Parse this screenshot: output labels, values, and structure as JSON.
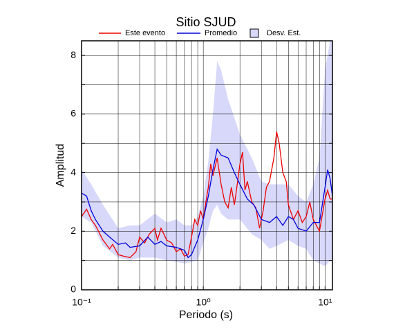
{
  "chart_data": {
    "type": "line",
    "title": "Sitio SJUD",
    "xlabel": "Periodo (s)",
    "ylabel": "Amplitud",
    "xscale": "log",
    "xlim": [
      0.1,
      11.5
    ],
    "ylim": [
      0,
      8.5
    ],
    "xticks": [
      {
        "value": 0.1,
        "label": "10⁻¹"
      },
      {
        "value": 1,
        "label": "10⁰"
      },
      {
        "value": 10,
        "label": "10¹"
      }
    ],
    "xminor_ticks": [
      0.2,
      0.3,
      0.4,
      0.5,
      0.6,
      0.7,
      0.8,
      0.9,
      2,
      3,
      4,
      5,
      6,
      7,
      8,
      9
    ],
    "yticks": [
      0,
      2,
      4,
      6,
      8
    ],
    "yminor_ticks": [
      1,
      3,
      5,
      7
    ],
    "grid": true,
    "legend": "top",
    "band": {
      "name": "Desv. Est.",
      "color": "#d8d8fa",
      "x": [
        0.1,
        0.12,
        0.15,
        0.2,
        0.25,
        0.3,
        0.4,
        0.5,
        0.6,
        0.7,
        0.8,
        0.9,
        1.0,
        1.1,
        1.2,
        1.3,
        1.4,
        1.6,
        2.0,
        2.5,
        3.0,
        3.5,
        4.0,
        5.0,
        6.0,
        7.0,
        8.0,
        9.0,
        10.0,
        11.0,
        11.5
      ],
      "upper": [
        4.1,
        3.6,
        2.9,
        2.1,
        2.2,
        2.2,
        2.6,
        2.3,
        2.4,
        2.2,
        2.2,
        2.5,
        3.2,
        4.4,
        6.0,
        7.8,
        7.5,
        6.5,
        5.3,
        4.5,
        3.7,
        3.6,
        3.6,
        3.6,
        3.2,
        3.0,
        3.6,
        4.5,
        7.5,
        8.5,
        8.5
      ],
      "lower": [
        2.5,
        2.3,
        1.5,
        1.1,
        1.0,
        1.1,
        1.1,
        1.0,
        0.95,
        0.9,
        0.95,
        1.0,
        1.6,
        2.1,
        2.7,
        2.9,
        2.6,
        2.4,
        2.4,
        1.9,
        1.7,
        1.4,
        1.5,
        1.7,
        1.5,
        1.4,
        1.0,
        0.9,
        0.8,
        1.0,
        1.0
      ]
    },
    "series": [
      {
        "name": "Este evento",
        "color": "#ee0000",
        "x": [
          0.1,
          0.11,
          0.12,
          0.13,
          0.15,
          0.17,
          0.18,
          0.2,
          0.22,
          0.25,
          0.28,
          0.3,
          0.33,
          0.36,
          0.4,
          0.42,
          0.45,
          0.5,
          0.55,
          0.6,
          0.65,
          0.7,
          0.75,
          0.8,
          0.85,
          0.9,
          0.95,
          1.0,
          1.05,
          1.1,
          1.15,
          1.2,
          1.3,
          1.4,
          1.5,
          1.6,
          1.7,
          1.8,
          1.9,
          2.0,
          2.1,
          2.2,
          2.3,
          2.5,
          2.7,
          2.9,
          3.1,
          3.3,
          3.5,
          3.8,
          4.0,
          4.2,
          4.5,
          4.8,
          5.0,
          5.5,
          6.0,
          6.5,
          7.0,
          7.5,
          8.0,
          9.0,
          10.0,
          10.5,
          11.0,
          11.5
        ],
        "values": [
          2.5,
          2.75,
          2.4,
          2.2,
          1.7,
          1.4,
          1.55,
          1.2,
          1.15,
          1.1,
          1.3,
          1.8,
          1.6,
          1.9,
          2.1,
          1.7,
          2.1,
          1.7,
          1.6,
          1.3,
          1.4,
          1.15,
          1.2,
          1.8,
          2.4,
          2.2,
          2.7,
          2.4,
          3.0,
          3.5,
          4.3,
          3.9,
          4.5,
          3.6,
          3.0,
          2.8,
          3.5,
          2.9,
          3.6,
          4.3,
          4.7,
          3.4,
          3.7,
          3.0,
          2.8,
          2.1,
          2.7,
          3.5,
          3.7,
          4.5,
          5.4,
          5.0,
          4.0,
          3.7,
          2.9,
          2.4,
          2.7,
          2.3,
          2.5,
          3.0,
          2.4,
          2.0,
          3.1,
          3.4,
          3.1,
          3.1
        ]
      },
      {
        "name": "Promedio",
        "color": "#0000dd",
        "x": [
          0.1,
          0.11,
          0.12,
          0.13,
          0.15,
          0.17,
          0.2,
          0.23,
          0.25,
          0.3,
          0.35,
          0.4,
          0.45,
          0.5,
          0.6,
          0.7,
          0.75,
          0.8,
          0.9,
          1.0,
          1.1,
          1.2,
          1.3,
          1.4,
          1.6,
          1.8,
          2.0,
          2.3,
          2.6,
          3.0,
          3.5,
          4.0,
          4.5,
          5.0,
          5.5,
          6.0,
          7.0,
          8.0,
          9.0,
          10.0,
          10.5,
          11.0,
          11.5
        ],
        "values": [
          3.3,
          3.2,
          2.7,
          2.4,
          2.0,
          1.8,
          1.55,
          1.6,
          1.45,
          1.5,
          1.8,
          1.55,
          1.65,
          1.5,
          1.45,
          1.35,
          1.1,
          1.2,
          1.7,
          2.4,
          3.2,
          4.1,
          4.8,
          4.6,
          4.5,
          4.0,
          3.6,
          3.1,
          2.9,
          2.4,
          2.3,
          2.5,
          2.2,
          2.5,
          2.4,
          2.1,
          2.0,
          2.3,
          2.3,
          3.5,
          4.1,
          3.8,
          3.2
        ]
      }
    ]
  }
}
